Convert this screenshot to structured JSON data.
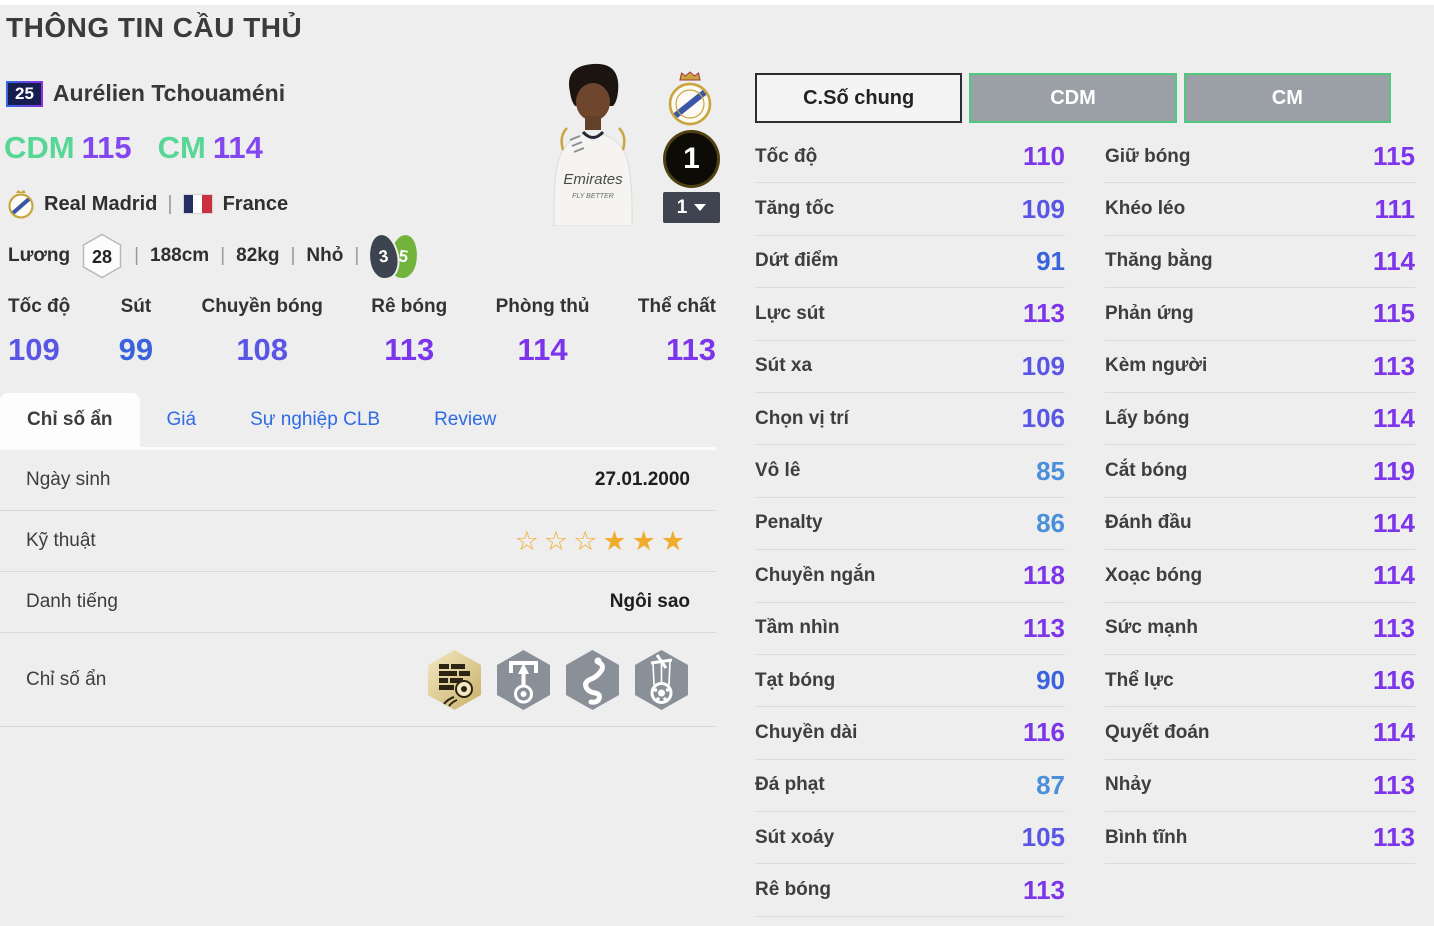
{
  "page": {
    "title": "THÔNG TIN CẦU THỦ"
  },
  "chars": {
    "divider": "|",
    "star_filled": "★",
    "star_empty": "☆"
  },
  "player": {
    "number": "25",
    "name": "Aurélien Tchouaméni",
    "positions": [
      {
        "label": "CDM",
        "rating": "115"
      },
      {
        "label": "CM",
        "rating": "114"
      }
    ],
    "club": "Real Madrid",
    "nation": "France",
    "salary_label": "Lương",
    "salary": "28",
    "height": "188cm",
    "weight": "82kg",
    "body_type": "Nhỏ",
    "weak_foot": "3",
    "strong_foot": "5",
    "upgrade_level": "1",
    "level_select": "1",
    "shirt_text_1": "Emirates",
    "shirt_text_2": "FLY BETTER"
  },
  "summary": {
    "stats": [
      {
        "label": "Tốc độ",
        "value": 109
      },
      {
        "label": "Sút",
        "value": 99
      },
      {
        "label": "Chuyền bóng",
        "value": 108
      },
      {
        "label": "Rê bóng",
        "value": 113
      },
      {
        "label": "Phòng thủ",
        "value": 114
      },
      {
        "label": "Thể chất",
        "value": 113
      }
    ]
  },
  "tabs": {
    "items": [
      {
        "label": "Chỉ số ẩn",
        "active": true
      },
      {
        "label": "Giá",
        "active": false
      },
      {
        "label": "Sự nghiệp CLB",
        "active": false
      },
      {
        "label": "Review",
        "active": false
      }
    ]
  },
  "info": {
    "birth_label": "Ngày sinh",
    "birth_value": "27.01.2000",
    "skill_label": "Kỹ thuật",
    "skill_stars": {
      "filled": 3,
      "total": 6
    },
    "fame_label": "Danh tiếng",
    "fame_value": "Ngôi sao",
    "hidden_label": "Chỉ số ẩn",
    "trait_icons": [
      {
        "name": "brick-wall-power-shot",
        "variant": "gold"
      },
      {
        "name": "goal-arrow-poacher",
        "variant": "gray"
      },
      {
        "name": "snake-dribbler",
        "variant": "gray"
      },
      {
        "name": "puppet-master-ball",
        "variant": "gray"
      }
    ]
  },
  "detail": {
    "tabs": [
      {
        "label": "C.Số chung",
        "active": true
      },
      {
        "label": "CDM",
        "active": false
      },
      {
        "label": "CM",
        "active": false
      }
    ],
    "columns": [
      [
        {
          "label": "Tốc độ",
          "value": 110
        },
        {
          "label": "Tăng tốc",
          "value": 109
        },
        {
          "label": "Dứt điểm",
          "value": 91
        },
        {
          "label": "Lực sút",
          "value": 113
        },
        {
          "label": "Sút xa",
          "value": 109
        },
        {
          "label": "Chọn vị trí",
          "value": 106
        },
        {
          "label": "Vô lê",
          "value": 85
        },
        {
          "label": "Penalty",
          "value": 86
        },
        {
          "label": "Chuyền ngắn",
          "value": 118
        },
        {
          "label": "Tầm nhìn",
          "value": 113
        },
        {
          "label": "Tạt bóng",
          "value": 90
        },
        {
          "label": "Chuyền dài",
          "value": 116
        },
        {
          "label": "Đá phạt",
          "value": 87
        },
        {
          "label": "Sút xoáy",
          "value": 105
        },
        {
          "label": "Rê bóng",
          "value": 113
        }
      ],
      [
        {
          "label": "Giữ bóng",
          "value": 115
        },
        {
          "label": "Khéo léo",
          "value": 111
        },
        {
          "label": "Thăng bằng",
          "value": 114
        },
        {
          "label": "Phản ứng",
          "value": 115
        },
        {
          "label": "Kèm người",
          "value": 113
        },
        {
          "label": "Lấy bóng",
          "value": 114
        },
        {
          "label": "Cắt bóng",
          "value": 119
        },
        {
          "label": "Đánh đầu",
          "value": 114
        },
        {
          "label": "Xoạc bóng",
          "value": 114
        },
        {
          "label": "Sức mạnh",
          "value": 113
        },
        {
          "label": "Thể lực",
          "value": 116
        },
        {
          "label": "Quyết đoán",
          "value": 114
        },
        {
          "label": "Nhảy",
          "value": 113
        },
        {
          "label": "Bình tĩnh",
          "value": 113
        }
      ]
    ]
  },
  "colors": {
    "mint": "#57d695",
    "purple": "#8247f0",
    "tab_blue": "#2e6be4",
    "star_gold": "#f0ad2d",
    "foot_weak_bg": "#3c4450",
    "foot_strong_bg": "#72b33c",
    "detail_tab_border_green": "#4ec97d",
    "value_scale": {
      "v110": "#7c35ea",
      "v100": "#5956e6",
      "v90": "#3a62dd",
      "v80": "#4a8fd9"
    }
  }
}
